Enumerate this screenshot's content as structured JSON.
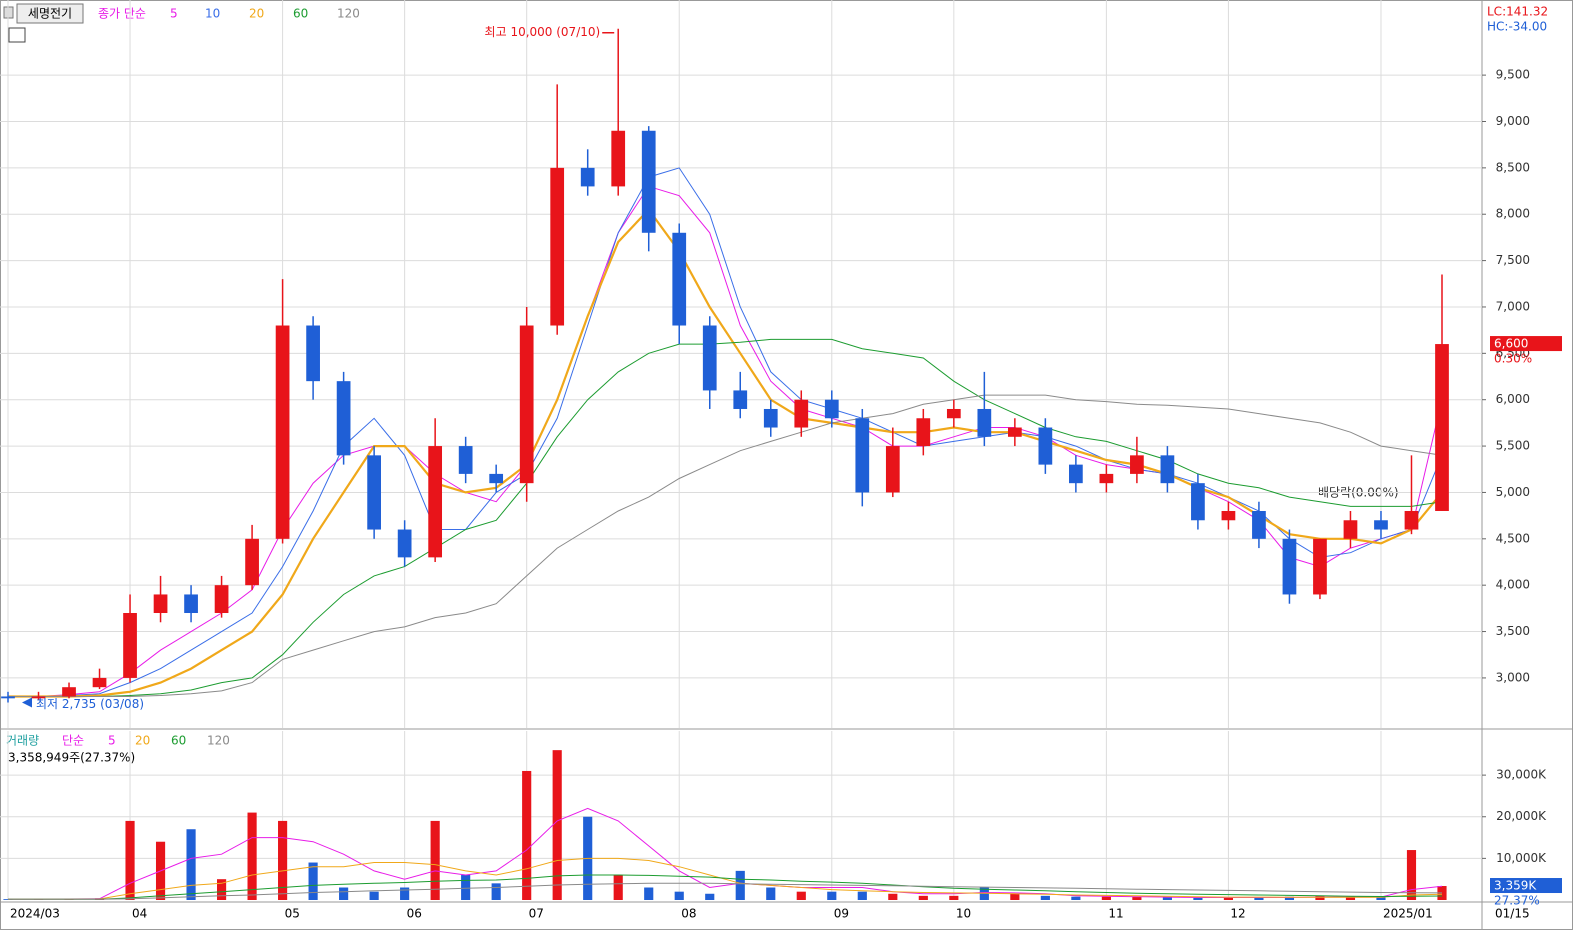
{
  "chart_data": [
    {
      "type": "candlestick",
      "title": "세명전기",
      "legend_prefix": "종가 단순",
      "categories": [
        "2024/03",
        null,
        null,
        null,
        "04",
        null,
        null,
        null,
        null,
        "05",
        null,
        null,
        null,
        "06",
        null,
        null,
        null,
        "07",
        null,
        null,
        null,
        null,
        "08",
        null,
        null,
        null,
        null,
        "09",
        null,
        null,
        null,
        "10",
        null,
        null,
        null,
        null,
        "11",
        null,
        null,
        null,
        "12",
        null,
        null,
        null,
        null,
        "2025/01",
        null,
        null
      ],
      "ohlc": {
        "open": [
          2800,
          2780,
          2800,
          2900,
          3000,
          3700,
          3900,
          3700,
          4000,
          4500,
          6800,
          6200,
          5400,
          4600,
          4300,
          5500,
          5200,
          5100,
          6800,
          8500,
          8300,
          8900,
          7800,
          6800,
          6100,
          5900,
          5700,
          6000,
          5800,
          5000,
          5500,
          5800,
          5900,
          5600,
          5700,
          5300,
          5100,
          5200,
          5400,
          5100,
          4700,
          4800,
          4500,
          3900,
          4500,
          4700,
          4600,
          4800
        ],
        "high": [
          2850,
          2850,
          2950,
          3100,
          3900,
          4100,
          4000,
          4100,
          4650,
          7300,
          6900,
          6300,
          5500,
          4700,
          5800,
          5600,
          5300,
          7000,
          9400,
          8700,
          10000,
          8950,
          7900,
          6900,
          6300,
          6000,
          6100,
          6100,
          5900,
          5700,
          5900,
          6000,
          6300,
          5800,
          5800,
          5400,
          5300,
          5600,
          5500,
          5200,
          4900,
          4900,
          4600,
          4500,
          4800,
          4800,
          5400,
          7350
        ],
        "low": [
          2735,
          2760,
          2780,
          2880,
          2950,
          3600,
          3600,
          3650,
          3950,
          4450,
          6000,
          5300,
          4500,
          4200,
          4250,
          5100,
          5000,
          4900,
          6700,
          8200,
          8200,
          7600,
          6600,
          5900,
          5800,
          5600,
          5600,
          5700,
          4850,
          4950,
          5400,
          5700,
          5500,
          5500,
          5200,
          5000,
          5000,
          5100,
          5000,
          4600,
          4600,
          4400,
          3800,
          3850,
          4400,
          4500,
          4550,
          4800
        ],
        "close": [
          2780,
          2800,
          2900,
          3000,
          3700,
          3900,
          3700,
          4000,
          4500,
          6800,
          6200,
          5400,
          4600,
          4300,
          5500,
          5200,
          5100,
          6800,
          8500,
          8300,
          8900,
          7800,
          6800,
          6100,
          5900,
          5700,
          6000,
          5800,
          5000,
          5500,
          5800,
          5900,
          5600,
          5700,
          5300,
          5100,
          5200,
          5400,
          5100,
          4700,
          4800,
          4500,
          3900,
          4500,
          4700,
          4600,
          4800,
          6600
        ]
      },
      "up_color": "#e8141a",
      "down_color": "#1f5fd6",
      "series": [
        {
          "name": "5",
          "color": "#e81ce8",
          "values": [
            2800,
            2800,
            2820,
            2850,
            3050,
            3300,
            3500,
            3700,
            3950,
            4600,
            5100,
            5400,
            5500,
            5500,
            5200,
            5000,
            4900,
            5300,
            6000,
            6900,
            7800,
            8300,
            8200,
            7800,
            6800,
            6200,
            5900,
            5800,
            5700,
            5500,
            5500,
            5600,
            5700,
            5700,
            5600,
            5400,
            5300,
            5250,
            5200,
            5050,
            4900,
            4700,
            4300,
            4200,
            4400,
            4500,
            4600,
            6000
          ]
        },
        {
          "name": "10",
          "color": "#3a6ee8",
          "values": [
            2800,
            2800,
            2810,
            2830,
            2950,
            3100,
            3300,
            3500,
            3700,
            4200,
            4800,
            5500,
            5800,
            5400,
            4600,
            4600,
            5000,
            5200,
            5800,
            6800,
            7800,
            8400,
            8500,
            8000,
            7000,
            6300,
            6000,
            5900,
            5800,
            5650,
            5500,
            5550,
            5600,
            5650,
            5600,
            5500,
            5350,
            5250,
            5200,
            5100,
            4950,
            4800,
            4500,
            4300,
            4350,
            4500,
            4600,
            5400
          ]
        },
        {
          "name": "20",
          "color": "#f0a81a",
          "values": [
            2800,
            2800,
            2800,
            2810,
            2850,
            2950,
            3100,
            3300,
            3500,
            3900,
            4500,
            5000,
            5500,
            5500,
            5100,
            5000,
            5050,
            5300,
            6000,
            6900,
            7700,
            8050,
            7600,
            7000,
            6500,
            6000,
            5800,
            5750,
            5700,
            5650,
            5650,
            5700,
            5650,
            5650,
            5550,
            5450,
            5350,
            5300,
            5200,
            5050,
            4950,
            4750,
            4550,
            4500,
            4500,
            4450,
            4600,
            5000
          ]
        },
        {
          "name": "60",
          "color": "#1c9c30",
          "values": [
            2800,
            2800,
            2800,
            2800,
            2810,
            2830,
            2870,
            2950,
            3000,
            3250,
            3600,
            3900,
            4100,
            4200,
            4400,
            4600,
            4700,
            5100,
            5600,
            6000,
            6300,
            6500,
            6600,
            6600,
            6620,
            6650,
            6650,
            6650,
            6550,
            6500,
            6450,
            6200,
            6000,
            5850,
            5700,
            5600,
            5550,
            5450,
            5350,
            5200,
            5100,
            5050,
            4950,
            4900,
            4850,
            4850,
            4850,
            4900
          ]
        },
        {
          "name": "120",
          "color": "#8a8a8a",
          "values": [
            2800,
            2800,
            2800,
            2800,
            2800,
            2810,
            2830,
            2860,
            2950,
            3200,
            3300,
            3400,
            3500,
            3550,
            3650,
            3700,
            3800,
            4100,
            4400,
            4600,
            4800,
            4950,
            5150,
            5300,
            5450,
            5550,
            5650,
            5750,
            5800,
            5850,
            5950,
            6000,
            6050,
            6050,
            6050,
            6000,
            5980,
            5950,
            5940,
            5920,
            5900,
            5850,
            5800,
            5750,
            5650,
            5500,
            5450,
            5400
          ]
        }
      ],
      "ylim": [
        2460,
        10310
      ],
      "yticks": [
        {
          "value": 3000,
          "label": "3,000"
        },
        {
          "value": 3500,
          "label": "3,500"
        },
        {
          "value": 4000,
          "label": "4,000"
        },
        {
          "value": 4500,
          "label": "4,500"
        },
        {
          "value": 5000,
          "label": "5,000"
        },
        {
          "value": 5500,
          "label": "5,500"
        },
        {
          "value": 6000,
          "label": "6,000"
        },
        {
          "value": 6500,
          "label": "6,500"
        },
        {
          "value": 7000,
          "label": "7,000"
        },
        {
          "value": 7500,
          "label": "7,500"
        },
        {
          "value": 8000,
          "label": "8,000"
        },
        {
          "value": 8500,
          "label": "8,500"
        },
        {
          "value": 9000,
          "label": "9,000"
        },
        {
          "value": 9500,
          "label": "9,500"
        }
      ],
      "grid": true,
      "high_annotation": "최고 10,000 (07/10)",
      "low_annotation": "최저 2,735 (03/08)",
      "dividend_annotation": "배당락(0.00%)",
      "lc_label": "LC:141.32",
      "hc_label": "HC:-34.00",
      "last_price": {
        "value": 6600,
        "label": "6,600"
      },
      "change_label": "0.30%"
    },
    {
      "type": "bar",
      "title": "거래량",
      "legend_prefix": "단순",
      "info": "3,358,949주(27.37%)",
      "values": [
        200,
        200,
        300,
        400,
        19000,
        14000,
        17000,
        5000,
        21000,
        19000,
        9000,
        3000,
        2000,
        3000,
        19000,
        6000,
        4000,
        31000,
        36000,
        20000,
        6000,
        3000,
        2000,
        1500,
        7000,
        3000,
        2000,
        2000,
        2000,
        1500,
        1000,
        1000,
        3000,
        1500,
        1000,
        800,
        800,
        800,
        600,
        500,
        600,
        500,
        800,
        1000,
        800,
        700,
        12000,
        3359
      ],
      "series": [
        {
          "name": "5",
          "color": "#e81ce8",
          "values": [
            200,
            200,
            250,
            300,
            4000,
            7000,
            10000,
            11000,
            15000,
            15000,
            14000,
            11000,
            7000,
            5000,
            7000,
            6000,
            7000,
            12000,
            19000,
            22000,
            19000,
            13000,
            7000,
            3000,
            4000,
            3500,
            3000,
            3000,
            3000,
            2000,
            1500,
            1500,
            1800,
            1700,
            1500,
            1000,
            900,
            800,
            700,
            600,
            600,
            600,
            600,
            700,
            700,
            700,
            2500,
            3300
          ]
        },
        {
          "name": "20",
          "color": "#f0a81a",
          "values": [
            200,
            200,
            200,
            250,
            1500,
            2500,
            3500,
            4000,
            6000,
            7000,
            8000,
            8000,
            9000,
            9000,
            8500,
            7000,
            6000,
            7500,
            9500,
            10000,
            10000,
            9500,
            8000,
            6000,
            4000,
            3500,
            3000,
            2500,
            2200,
            2000,
            1800,
            1700,
            1600,
            1500,
            1400,
            1200,
            1100,
            1000,
            900,
            800,
            700,
            700,
            650,
            650,
            650,
            650,
            1200,
            1400
          ]
        },
        {
          "name": "60",
          "color": "#1c9c30",
          "values": [
            200,
            200,
            200,
            200,
            500,
            1000,
            1500,
            2000,
            2500,
            3000,
            3500,
            3800,
            4000,
            4200,
            4500,
            4700,
            4800,
            5200,
            5800,
            6000,
            6000,
            5900,
            5700,
            5500,
            5000,
            4800,
            4500,
            4300,
            4000,
            3600,
            3200,
            2800,
            2600,
            2400,
            2200,
            2000,
            1800,
            1600,
            1500,
            1400,
            1300,
            1200,
            1100,
            1000,
            900,
            850,
            900,
            950
          ]
        },
        {
          "name": "120",
          "color": "#8a8a8a",
          "values": [
            200,
            200,
            200,
            200,
            300,
            500,
            800,
            1000,
            1200,
            1500,
            1800,
            2000,
            2200,
            2400,
            2600,
            2800,
            3000,
            3300,
            3600,
            3800,
            3900,
            4000,
            4000,
            4000,
            3900,
            3800,
            3700,
            3600,
            3500,
            3400,
            3300,
            3200,
            3100,
            3000,
            2900,
            2800,
            2700,
            2600,
            2500,
            2400,
            2300,
            2200,
            2100,
            2000,
            1900,
            1800,
            1750,
            1700
          ]
        }
      ],
      "ylim": [
        0,
        40600
      ],
      "yticks": [
        {
          "value": 10000,
          "label": "10,000K"
        },
        {
          "value": 20000,
          "label": "20,000K"
        },
        {
          "value": 30000,
          "label": "30,000K"
        }
      ],
      "grid": true,
      "last_label": {
        "value": 3359,
        "label": "3,359K"
      },
      "ratio_label": "27.37%",
      "x_end_label": "01/15"
    }
  ]
}
